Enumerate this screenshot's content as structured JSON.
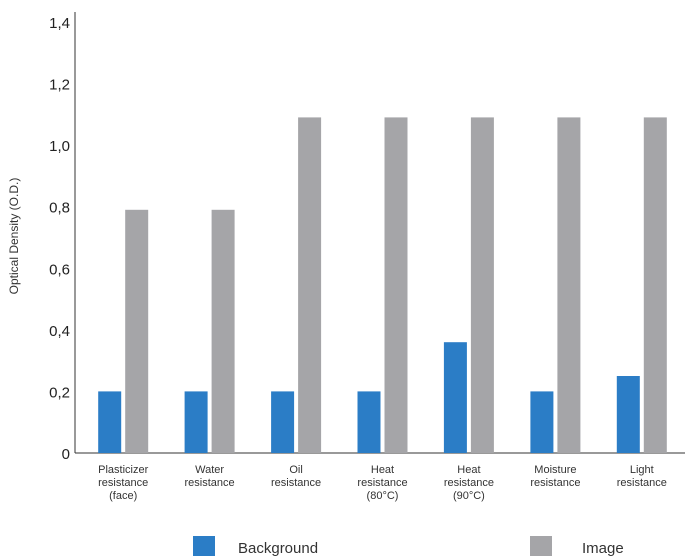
{
  "chart_data": {
    "type": "bar",
    "title": "",
    "xlabel": "",
    "ylabel": "Optical Density (O.D.)",
    "ylim": [
      0,
      1.4
    ],
    "yticks": [
      "0",
      "0,2",
      "0,4",
      "0,6",
      "0,8",
      "1,0",
      "1,2",
      "1,4"
    ],
    "grid": false,
    "legend_position": "bottom",
    "categories": [
      [
        "Plasticizer",
        "resistance",
        "(face)"
      ],
      [
        "Water",
        "resistance"
      ],
      [
        "Oil",
        "resistance"
      ],
      [
        "Heat",
        "resistance",
        "(80°C)"
      ],
      [
        "Heat",
        "resistance",
        "(90°C)"
      ],
      [
        "Moisture",
        "resistance"
      ],
      [
        "Light",
        "resistance"
      ]
    ],
    "series": [
      {
        "name": "Background",
        "color": "#2b7dc6",
        "values": [
          0.2,
          0.2,
          0.2,
          0.2,
          0.36,
          0.2,
          0.25
        ]
      },
      {
        "name": "Image",
        "color": "#a5a5a8",
        "values": [
          0.79,
          0.79,
          1.09,
          1.09,
          1.09,
          1.09,
          1.09
        ]
      }
    ]
  }
}
